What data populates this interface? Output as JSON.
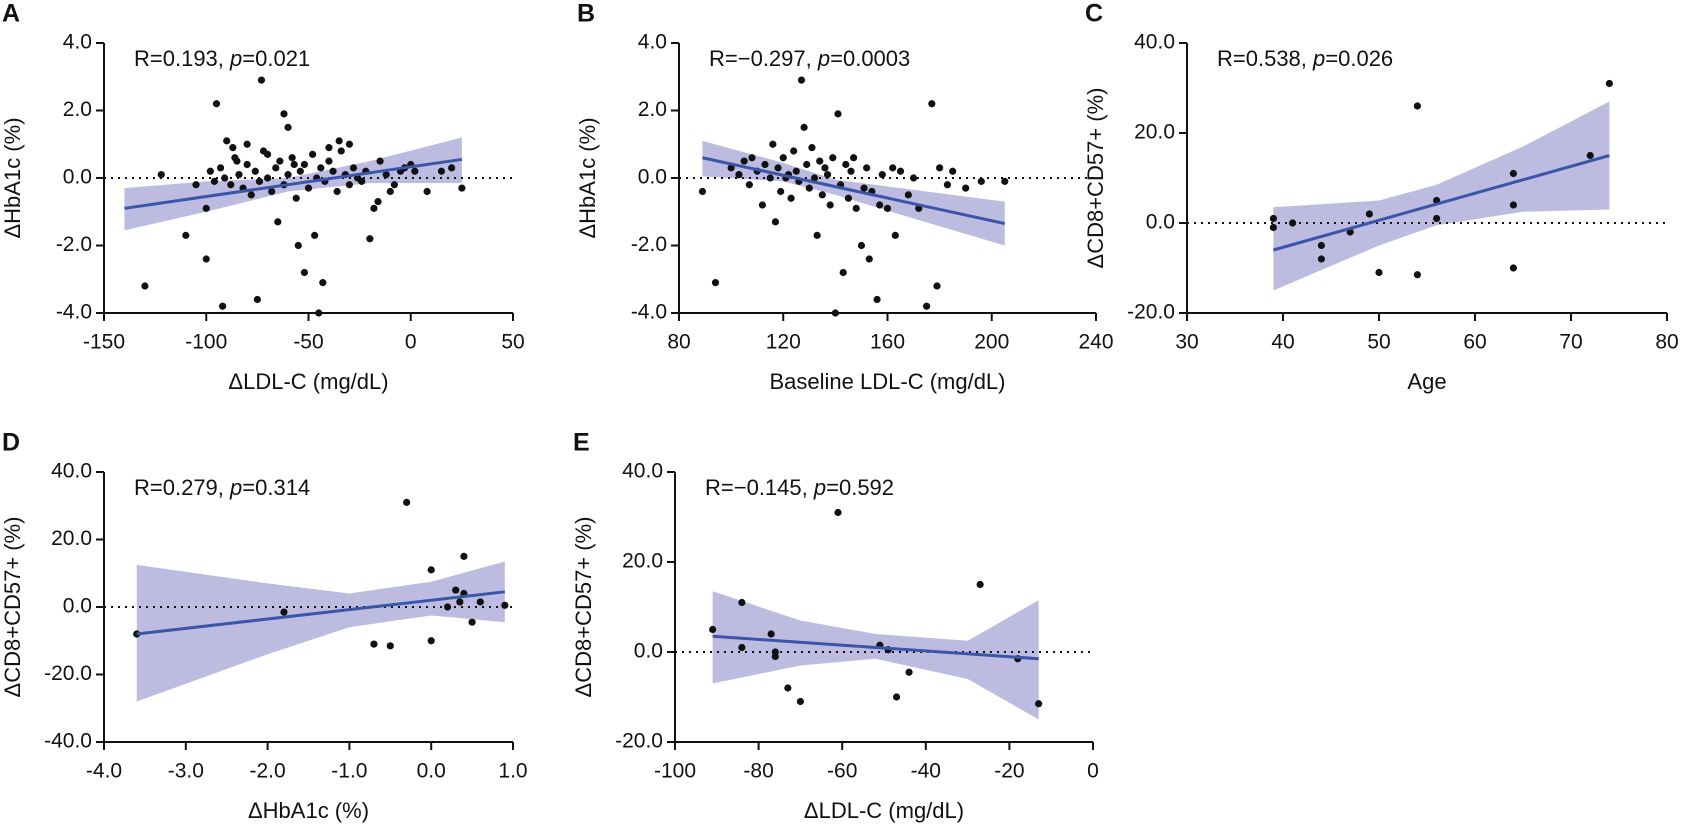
{
  "chart_data": [
    {
      "type": "scatter",
      "panel": "A",
      "annotation": [
        "R=0.193, ",
        "p",
        "=0.021"
      ],
      "xlabel": "ΔLDL-C (mg/dL)",
      "ylabel": "ΔHbA1c (%)",
      "xlim": [
        -150,
        50
      ],
      "xticks": [
        -150,
        -100,
        -50,
        0,
        50
      ],
      "ylim": [
        -4,
        4
      ],
      "yticks": [
        {
          "value": -4,
          "label": "-4.0"
        },
        {
          "value": -2,
          "label": "-2.0"
        },
        {
          "value": 0,
          "label": "0.0"
        },
        {
          "value": 2,
          "label": "2.0"
        },
        {
          "value": 4,
          "label": "4.0"
        }
      ],
      "reference_line": 0,
      "point_color": "#111111",
      "line_color": "#3a56a8",
      "band_color": "#b3afdc",
      "points": {
        "x": [
          -130,
          -122,
          -110,
          -100,
          -95,
          -92,
          -90,
          -75,
          -73,
          -62,
          -55,
          -52,
          -47,
          -43,
          -45,
          -20,
          -100,
          -65,
          -10,
          0,
          20,
          25,
          -5,
          -15,
          -30,
          -35,
          -40,
          -80,
          -85,
          -70,
          -60,
          -98,
          -96,
          -93,
          -91,
          -88,
          -86,
          -84,
          -82,
          -80,
          -78,
          -76,
          -74,
          -72,
          -70,
          -68,
          -66,
          -64,
          -62,
          -60,
          -58,
          -56,
          -54,
          -52,
          -50,
          -48,
          -46,
          -44,
          -42,
          -40,
          -38,
          -36,
          -34,
          -32,
          -30,
          -28,
          -26,
          -24,
          -22,
          -18,
          -16,
          -12,
          -8,
          -3,
          2,
          8,
          15,
          -105,
          -87,
          -57
        ],
        "y": [
          -3.2,
          0.1,
          -1.7,
          -2.4,
          2.2,
          -3.8,
          1.1,
          -3.6,
          2.9,
          1.9,
          -2.0,
          -2.8,
          -1.7,
          -3.1,
          -4.0,
          -1.8,
          -0.9,
          -1.3,
          -0.4,
          0.4,
          0.3,
          -0.3,
          0.2,
          0.5,
          1.0,
          1.1,
          0.9,
          1.0,
          0.5,
          0.7,
          1.5,
          0.2,
          -0.1,
          0.3,
          0.0,
          -0.2,
          0.6,
          0.1,
          -0.3,
          0.4,
          -0.5,
          0.2,
          -0.1,
          0.8,
          0.0,
          -0.4,
          0.3,
          0.5,
          -0.2,
          0.1,
          0.6,
          -0.6,
          0.2,
          0.4,
          -0.3,
          0.7,
          0.0,
          0.3,
          -0.1,
          0.5,
          0.2,
          -0.4,
          0.8,
          0.1,
          -0.2,
          0.3,
          0.0,
          -0.1,
          0.2,
          -0.9,
          -0.7,
          0.1,
          -0.2,
          0.3,
          0.2,
          -0.4,
          0.2,
          -0.2,
          0.9,
          0.4
        ]
      },
      "fit": {
        "x": [
          -140,
          25
        ],
        "y": [
          -0.9,
          0.55
        ]
      },
      "band": {
        "x": [
          -140,
          -100,
          -60,
          -20,
          25
        ],
        "lower": [
          -1.55,
          -1.0,
          -0.4,
          -0.15,
          -0.15
        ],
        "upper": [
          -0.3,
          -0.1,
          0.0,
          0.5,
          1.2
        ]
      }
    },
    {
      "type": "scatter",
      "panel": "B",
      "annotation": [
        "R=−0.297, ",
        "p",
        "=0.0003"
      ],
      "xlabel": "Baseline LDL-C (mg/dL)",
      "ylabel": "ΔHbA1c (%)",
      "xlim": [
        80,
        240
      ],
      "xticks": [
        80,
        120,
        160,
        200,
        240
      ],
      "ylim": [
        -4,
        4
      ],
      "yticks": [
        {
          "value": -4,
          "label": "-4.0"
        },
        {
          "value": -2,
          "label": "-2.0"
        },
        {
          "value": 0,
          "label": "0.0"
        },
        {
          "value": 2,
          "label": "2.0"
        },
        {
          "value": 4,
          "label": "4.0"
        }
      ],
      "reference_line": 0,
      "point_color": "#111111",
      "line_color": "#3a56a8",
      "band_color": "#b3afdc",
      "points": {
        "x": [
          94,
          89,
          100,
          103,
          105,
          107,
          108,
          110,
          112,
          113,
          115,
          116,
          118,
          119,
          120,
          122,
          123,
          124,
          125,
          126,
          127,
          128,
          129,
          130,
          131,
          132,
          133,
          134,
          135,
          136,
          137,
          138,
          139,
          140,
          141,
          142,
          143,
          144,
          145,
          146,
          148,
          150,
          152,
          153,
          154,
          156,
          158,
          160,
          163,
          165,
          168,
          170,
          175,
          177,
          179,
          180,
          183,
          185,
          190,
          196,
          205,
          117,
          121,
          147,
          151,
          157,
          162,
          172
        ],
        "y": [
          -3.1,
          -0.4,
          0.3,
          0.1,
          0.5,
          -0.2,
          0.6,
          0.2,
          -0.8,
          0.4,
          0.0,
          1.0,
          0.3,
          -0.4,
          0.6,
          0.1,
          -0.6,
          0.8,
          0.2,
          -0.1,
          2.9,
          1.5,
          0.4,
          -0.3,
          0.9,
          0.0,
          -1.7,
          0.5,
          -0.5,
          0.3,
          0.1,
          -0.8,
          0.6,
          -4.0,
          1.9,
          -0.2,
          -2.8,
          0.4,
          -0.6,
          0.2,
          -0.9,
          -2.0,
          0.3,
          -2.4,
          -0.4,
          -3.6,
          0.1,
          -0.9,
          -1.7,
          0.2,
          -0.5,
          0.0,
          -3.8,
          2.2,
          -3.2,
          0.3,
          -0.2,
          0.2,
          -0.3,
          -0.1,
          -0.1,
          -1.3,
          0.0,
          0.6,
          -0.3,
          -0.8,
          0.3,
          -0.9
        ]
      },
      "fit": {
        "x": [
          89,
          205
        ],
        "y": [
          0.6,
          -1.35
        ]
      },
      "band": {
        "x": [
          89,
          120,
          140,
          170,
          205
        ],
        "lower": [
          0.05,
          -0.1,
          -0.5,
          -1.2,
          -2.0
        ],
        "upper": [
          1.1,
          0.45,
          -0.05,
          -0.35,
          -0.7
        ]
      }
    },
    {
      "type": "scatter",
      "panel": "C",
      "annotation": [
        "R=0.538, ",
        "p",
        "=0.026"
      ],
      "xlabel": "Age",
      "ylabel": "ΔCD8+CD57+ (%)",
      "xlim": [
        30,
        80
      ],
      "xticks": [
        30,
        40,
        50,
        60,
        70,
        80
      ],
      "ylim": [
        -20,
        40
      ],
      "yticks": [
        {
          "value": -20,
          "label": "-20.0"
        },
        {
          "value": 0,
          "label": "0.0"
        },
        {
          "value": 20,
          "label": "20.0"
        },
        {
          "value": 40,
          "label": "40.0"
        }
      ],
      "reference_line": 0,
      "point_color": "#111111",
      "line_color": "#3a56a8",
      "band_color": "#b3afdc",
      "points": {
        "x": [
          39,
          39,
          41,
          44,
          44,
          47,
          49,
          50,
          54,
          54,
          56,
          56,
          64,
          64,
          64,
          72,
          74
        ],
        "y": [
          1,
          -1,
          0,
          -5,
          -8,
          -2,
          2,
          -11,
          26,
          -11.5,
          5,
          1,
          11,
          4,
          -10,
          15,
          31
        ]
      },
      "fit": {
        "x": [
          39,
          74
        ],
        "y": [
          -6,
          15
        ]
      },
      "band": {
        "x": [
          39,
          50,
          56,
          65,
          74
        ],
        "lower": [
          -15,
          -5,
          -0.5,
          2.5,
          3
        ],
        "upper": [
          3.5,
          5,
          8.5,
          17,
          27
        ]
      }
    },
    {
      "type": "scatter",
      "panel": "D",
      "annotation": [
        "R=0.279, ",
        "p",
        "=0.314"
      ],
      "xlabel": "ΔHbA1c (%)",
      "ylabel": "ΔCD8+CD57+ (%)",
      "xlim": [
        -4,
        1
      ],
      "xticks": [
        {
          "value": -4,
          "label": "-4.0"
        },
        {
          "value": -3,
          "label": "-3.0"
        },
        {
          "value": -2,
          "label": "-2.0"
        },
        {
          "value": -1,
          "label": "-1.0"
        },
        {
          "value": 0,
          "label": "0.0"
        },
        {
          "value": 1,
          "label": "1.0"
        }
      ],
      "ylim": [
        -40,
        40
      ],
      "yticks": [
        {
          "value": -40,
          "label": "-40.0"
        },
        {
          "value": -20,
          "label": "-20.0"
        },
        {
          "value": 0,
          "label": "0.0"
        },
        {
          "value": 20,
          "label": "20.0"
        },
        {
          "value": 40,
          "label": "40.0"
        }
      ],
      "reference_line": 0,
      "point_color": "#111111",
      "line_color": "#3a56a8",
      "band_color": "#b3afdc",
      "points": {
        "x": [
          -3.6,
          -1.8,
          -0.7,
          -0.5,
          -0.3,
          0,
          0,
          0.2,
          0.3,
          0.35,
          0.4,
          0.4,
          0.5,
          0.6,
          0.9
        ],
        "y": [
          -8,
          -1.5,
          -11,
          -11.5,
          31,
          11,
          -10,
          0,
          5,
          1.5,
          15,
          4,
          -4.5,
          1.5,
          0.5
        ]
      },
      "fit": {
        "x": [
          -3.6,
          0.9
        ],
        "y": [
          -8,
          4.5
        ]
      },
      "band": {
        "x": [
          -3.6,
          -2,
          -1,
          0,
          0.9
        ],
        "lower": [
          -28,
          -14,
          -6,
          -2.5,
          -4.5
        ],
        "upper": [
          12.5,
          7,
          4,
          7.5,
          13.5
        ]
      }
    },
    {
      "type": "scatter",
      "panel": "E",
      "annotation": [
        "R=−0.145, ",
        "p",
        "=0.592"
      ],
      "xlabel": "ΔLDL-C (mg/dL)",
      "ylabel": "ΔCD8+CD57+ (%)",
      "xlim": [
        -100,
        0
      ],
      "xticks": [
        -100,
        -80,
        -60,
        -40,
        -20,
        0
      ],
      "ylim": [
        -20,
        40
      ],
      "yticks": [
        {
          "value": -20,
          "label": "-20.0"
        },
        {
          "value": 0,
          "label": "0.0"
        },
        {
          "value": 20,
          "label": "20.0"
        },
        {
          "value": 40,
          "label": "40.0"
        }
      ],
      "reference_line": 0,
      "point_color": "#111111",
      "line_color": "#3a56a8",
      "band_color": "#b3afdc",
      "points": {
        "x": [
          -91,
          -84,
          -84,
          -77,
          -76,
          -76,
          -73,
          -70,
          -61,
          -51,
          -49,
          -47,
          -44,
          -27,
          -18,
          -13
        ],
        "y": [
          5,
          11,
          1,
          4,
          -1,
          0,
          -8,
          -11,
          31,
          1.5,
          0.5,
          -10,
          -4.5,
          15,
          -1.5,
          -11.5
        ]
      },
      "fit": {
        "x": [
          -91,
          -13
        ],
        "y": [
          3.5,
          -1.5
        ]
      },
      "band": {
        "x": [
          -91,
          -70,
          -52,
          -30,
          -13
        ],
        "lower": [
          -7,
          -3,
          -1.5,
          -6,
          -15
        ],
        "upper": [
          13.5,
          7,
          4,
          2.5,
          11.5
        ]
      }
    }
  ]
}
